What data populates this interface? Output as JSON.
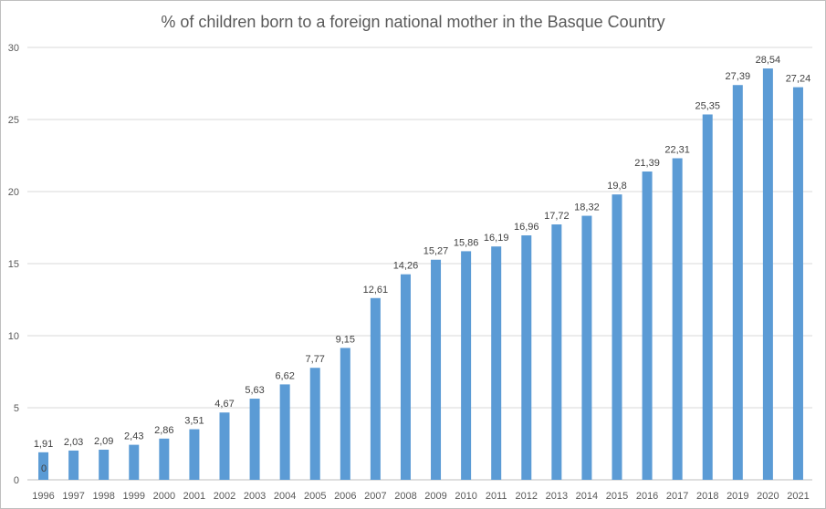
{
  "chart_data": {
    "type": "bar",
    "title": "% of children born to a foreign national mother in the Basque Country",
    "xlabel": "",
    "ylabel": "",
    "ylim": [
      0,
      30
    ],
    "yticks": [
      0,
      5,
      10,
      15,
      20,
      25,
      30
    ],
    "grid": true,
    "legend": "none",
    "bar_color": "#5b9bd5",
    "categories": [
      "1996",
      "1997",
      "1998",
      "1999",
      "2000",
      "2001",
      "2002",
      "2003",
      "2004",
      "2005",
      "2006",
      "2007",
      "2008",
      "2009",
      "2010",
      "2011",
      "2012",
      "2013",
      "2014",
      "2015",
      "2016",
      "2017",
      "2018",
      "2019",
      "2020",
      "2021"
    ],
    "values": [
      1.91,
      2.03,
      2.09,
      2.43,
      2.86,
      3.51,
      4.67,
      5.63,
      6.62,
      7.77,
      9.15,
      12.61,
      14.26,
      15.27,
      15.86,
      16.19,
      16.96,
      17.72,
      18.32,
      19.8,
      21.39,
      22.31,
      25.35,
      27.39,
      28.54,
      27.24
    ],
    "data_labels": [
      "1,91",
      "2,03",
      "2,09",
      "2,43",
      "2,86",
      "3,51",
      "4,67",
      "5,63",
      "6,62",
      "7,77",
      "9,15",
      "12,61",
      "14,26",
      "15,27",
      "15,86",
      "16,19",
      "16,96",
      "17,72",
      "18,32",
      "19,8",
      "21,39",
      "22,31",
      "25,35",
      "27,39",
      "28,54",
      "27,24"
    ],
    "annotations": [
      "0"
    ]
  }
}
